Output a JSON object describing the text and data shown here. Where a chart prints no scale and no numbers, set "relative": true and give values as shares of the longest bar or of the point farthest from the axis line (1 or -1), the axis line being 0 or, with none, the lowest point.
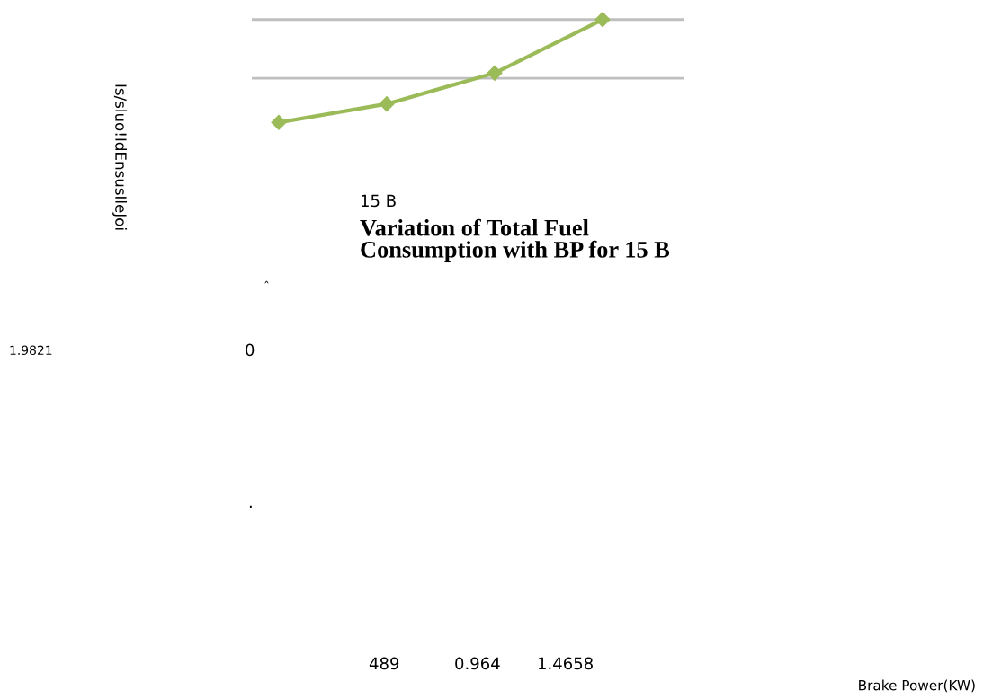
{
  "chart_data": {
    "type": "line",
    "relative": true,
    "title": "Variation of Total Fuel\nConsumption with BP for 15 B",
    "subtitle": "15 B",
    "categories": [
      null,
      null,
      null,
      null
    ],
    "series": [
      {
        "color": "#9bbb59",
        "values": [
          0,
          0.18,
          0.48,
          1
        ]
      }
    ],
    "marker": "diamond",
    "line_style": "solid",
    "grid": false,
    "legend": false,
    "ref_lines": [
      {
        "axis": "y",
        "value": 0.43,
        "color": "#bfbfbf"
      },
      {
        "axis": "y",
        "value": 1,
        "color": "#bfbfbf"
      }
    ],
    "annotations": [
      "Is/sluo!IdEnsusIleJoi",
      "ˆ",
      "1.9821",
      "0",
      ".",
      "489",
      "0.964",
      "1.4658",
      "Brake Power(KW)"
    ]
  }
}
